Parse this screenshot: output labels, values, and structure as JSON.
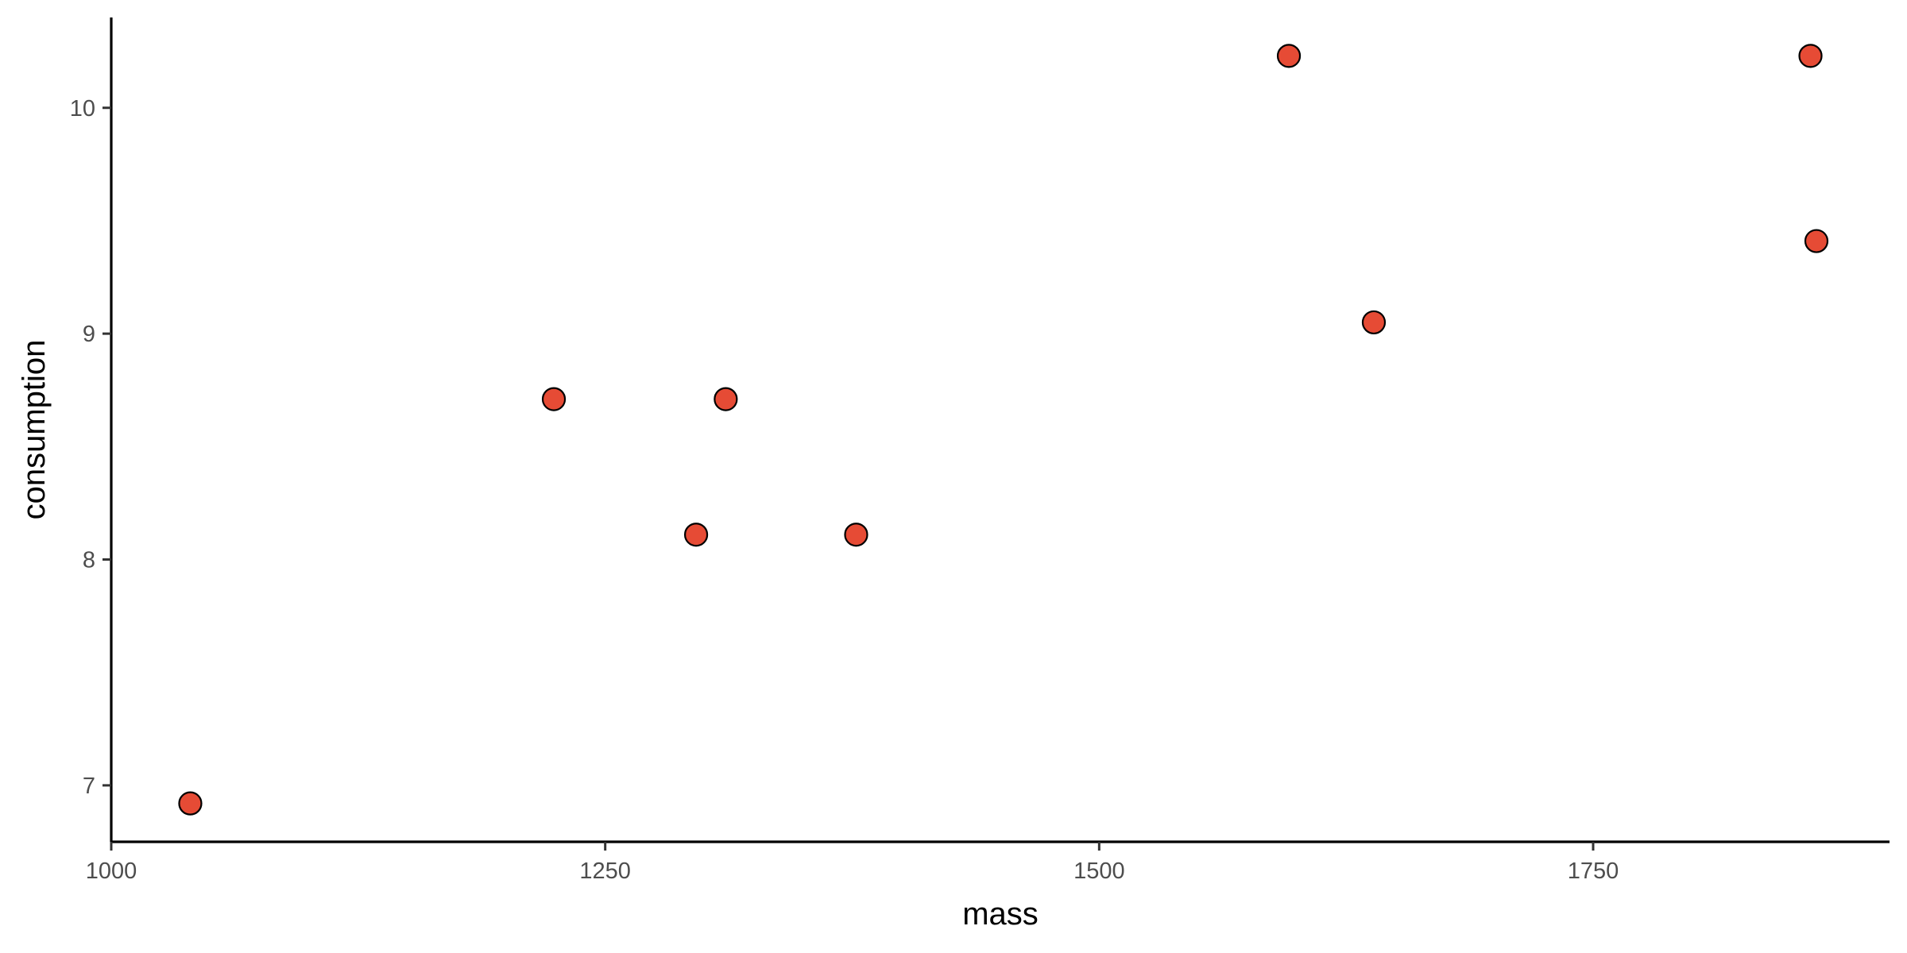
{
  "chart_data": {
    "type": "scatter",
    "title": "",
    "xlabel": "mass",
    "ylabel": "consumption",
    "xlim": [
      1000,
      1900
    ],
    "ylim": [
      6.75,
      10.4
    ],
    "xticks": [
      1000,
      1250,
      1500,
      1750
    ],
    "xtick_labels": [
      "1000",
      "1250",
      "1500",
      "1750"
    ],
    "yticks": [
      7,
      8,
      9,
      10
    ],
    "ytick_labels": [
      "7",
      "8",
      "9",
      "10"
    ],
    "grid": false,
    "legend": "none",
    "point_color": "#E64B35",
    "point_outline": "#000000",
    "points": [
      {
        "x": 1040,
        "y": 6.92
      },
      {
        "x": 1224,
        "y": 8.71
      },
      {
        "x": 1296,
        "y": 8.11
      },
      {
        "x": 1311,
        "y": 8.71
      },
      {
        "x": 1377,
        "y": 8.11
      },
      {
        "x": 1596,
        "y": 10.23
      },
      {
        "x": 1639,
        "y": 9.05
      },
      {
        "x": 1860,
        "y": 10.23
      },
      {
        "x": 1863,
        "y": 9.41
      }
    ]
  }
}
